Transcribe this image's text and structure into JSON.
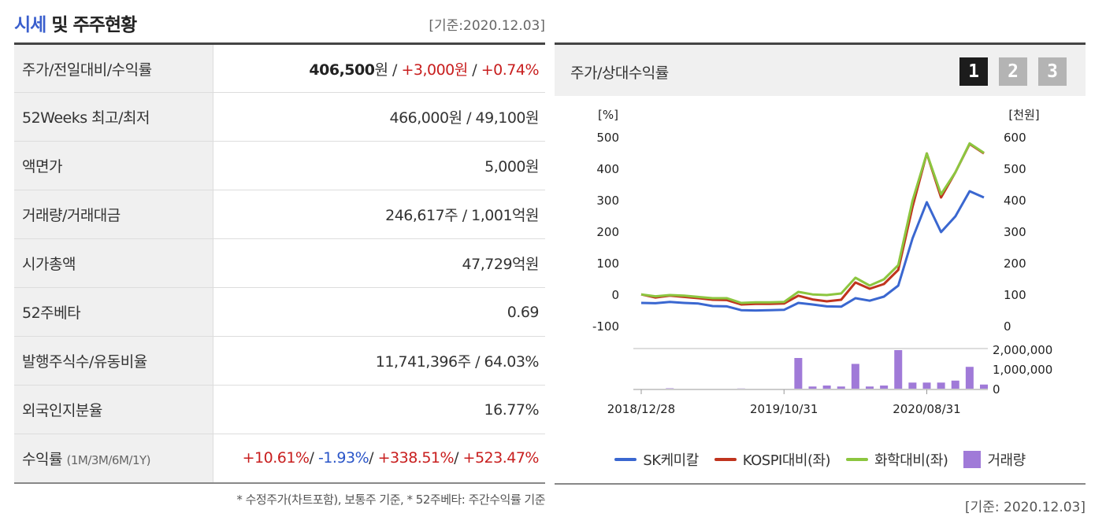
{
  "header": {
    "title_accent": "시세",
    "title_rest": " 및 주주현황",
    "asof": "[기준:2020.12.03]"
  },
  "rows": [
    {
      "label": "주가/전일대비/수익률"
    },
    {
      "label": "52Weeks 최고/최저",
      "value": "466,000원 / 49,100원"
    },
    {
      "label": "액면가",
      "value": "5,000원"
    },
    {
      "label": "거래량/거래대금",
      "value": "246,617주 / 1,001억원"
    },
    {
      "label": "시가총액",
      "value": "47,729억원"
    },
    {
      "label": "52주베타",
      "value": "0.69"
    },
    {
      "label": "발행주식수/유동비율",
      "value": "11,741,396주 / 64.03%"
    },
    {
      "label": "외국인지분율",
      "value": "16.77%"
    },
    {
      "label": "수익률",
      "label_sub": "(1M/3M/6M/1Y)"
    }
  ],
  "price": {
    "price": "406,500",
    "price_unit": "원 / ",
    "change": "+3,000원",
    "sep": " / ",
    "change_pct": "+0.74%"
  },
  "returns": {
    "r1m": "+10.61%",
    "r3m": "-1.93%",
    "r6m": "+338.51%",
    "r1y": "+523.47%",
    "sep": "/ "
  },
  "footnote": "* 수정주가(차트포함), 보통주 기준, * 52주베타: 주간수익률 기준",
  "chart_panel": {
    "title": "주가/상대수익률",
    "tabs": [
      "1",
      "2",
      "3"
    ],
    "asof": "[기준: 2020.12.03]"
  },
  "colors": {
    "sk": "#3a67d0",
    "kospi": "#c0341e",
    "chem": "#8cc63f",
    "volume": "#a07ad8",
    "up": "#c81e1e",
    "down": "#2a55c8"
  },
  "chart_data": {
    "type": "line",
    "left_axis_unit": "[%]",
    "right_axis_unit": "[천원]",
    "left_ticks": [
      "500",
      "400",
      "300",
      "200",
      "100",
      "0",
      "-100"
    ],
    "right_ticks": [
      "600",
      "500",
      "400",
      "300",
      "200",
      "100",
      "0"
    ],
    "ylim_left": [
      -100,
      500
    ],
    "ylim_right": [
      0,
      600
    ],
    "volume_ticks": [
      "2,000,000",
      "1,000,000",
      "0"
    ],
    "volume_ylim": [
      0,
      2000000
    ],
    "x_ticks": [
      {
        "label": "2018/12/28",
        "index": 0
      },
      {
        "label": "2019/10/31",
        "index": 10
      },
      {
        "label": "2020/08/31",
        "index": 20
      }
    ],
    "series": [
      {
        "name": "SK케미칼",
        "values": [
          -25,
          -26,
          -22,
          -25,
          -27,
          -35,
          -36,
          -48,
          -49,
          -48,
          -47,
          -25,
          -30,
          -36,
          -37,
          -10,
          -18,
          -5,
          30,
          180,
          295,
          200,
          250,
          330,
          310
        ]
      },
      {
        "name": "KOSPI대비(좌)",
        "values": [
          2,
          -8,
          -2,
          -6,
          -10,
          -15,
          -16,
          -30,
          -28,
          -28,
          -27,
          -2,
          -14,
          -20,
          -15,
          40,
          20,
          35,
          80,
          280,
          450,
          310,
          390,
          480,
          450
        ]
      },
      {
        "name": "화학대비(좌)",
        "values": [
          2,
          -4,
          0,
          -2,
          -6,
          -10,
          -10,
          -25,
          -23,
          -23,
          -22,
          10,
          2,
          0,
          5,
          55,
          30,
          50,
          95,
          300,
          450,
          320,
          390,
          482,
          452
        ]
      }
    ],
    "volume_series": {
      "name": "거래량",
      "values": [
        20000,
        10000,
        60000,
        30000,
        20000,
        20000,
        15000,
        50000,
        15000,
        20000,
        15000,
        1600000,
        150000,
        200000,
        150000,
        1300000,
        150000,
        200000,
        2000000,
        350000,
        350000,
        350000,
        450000,
        1150000,
        250000
      ]
    }
  }
}
